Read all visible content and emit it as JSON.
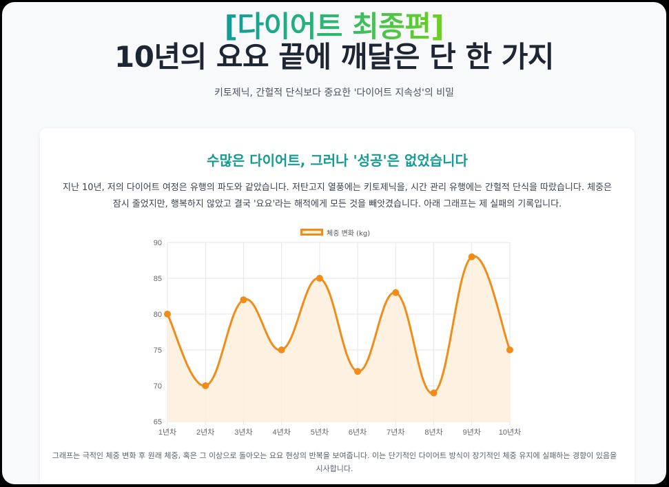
{
  "hero": {
    "tag": "[다이어트 최종편]",
    "title": "10년의 요요 끝에 깨달은 단 한 가지",
    "subtitle": "키토제닉, 간헐적 단식보다 중요한 '다이어트 지속성'의 비밀"
  },
  "section": {
    "title": "수많은 다이어트, 그러나 '성공'은 없었습니다",
    "body": "지난 10년, 저의 다이어트 여정은 유행의 파도와 같았습니다. 저탄고지 열풍에는 키토제닉을, 시간 관리 유행에는 간헐적 단식을 따랐습니다. 체중은 잠시 줄었지만, 행복하지 않았고 결국 '요요'라는 해적에게 모든 것을 빼앗겼습니다. 아래 그래프는 제 실패의 기록입니다.",
    "caption": "그래프는 극적인 체중 변화 후 원래 체중, 혹은 그 이상으로 돌아오는 요요 현상의 반복을 보여줍니다. 이는 단기적인 다이어트 방식이 장기적인 체중 유지에 실패하는 경향이 있음을 시사합니다."
  },
  "colors": {
    "line": "#f28c18",
    "fill": "#fdeedd",
    "title_accent": "#139b94",
    "grid": "#e6e6e6"
  },
  "chart_data": {
    "type": "line",
    "title": "",
    "categories": [
      "1년차",
      "2년차",
      "3년차",
      "4년차",
      "5년차",
      "6년차",
      "7년차",
      "8년차",
      "9년차",
      "10년차"
    ],
    "series": [
      {
        "name": "체중 변화 (kg)",
        "values": [
          80,
          70,
          82,
          75,
          85,
          72,
          83,
          69,
          88,
          75
        ]
      }
    ],
    "xlabel": "",
    "ylabel": "",
    "ylim": [
      65,
      90
    ],
    "yticks": [
      65,
      70,
      75,
      80,
      85,
      90
    ],
    "grid": true,
    "legend_position": "top",
    "fill": true,
    "smooth": true
  }
}
